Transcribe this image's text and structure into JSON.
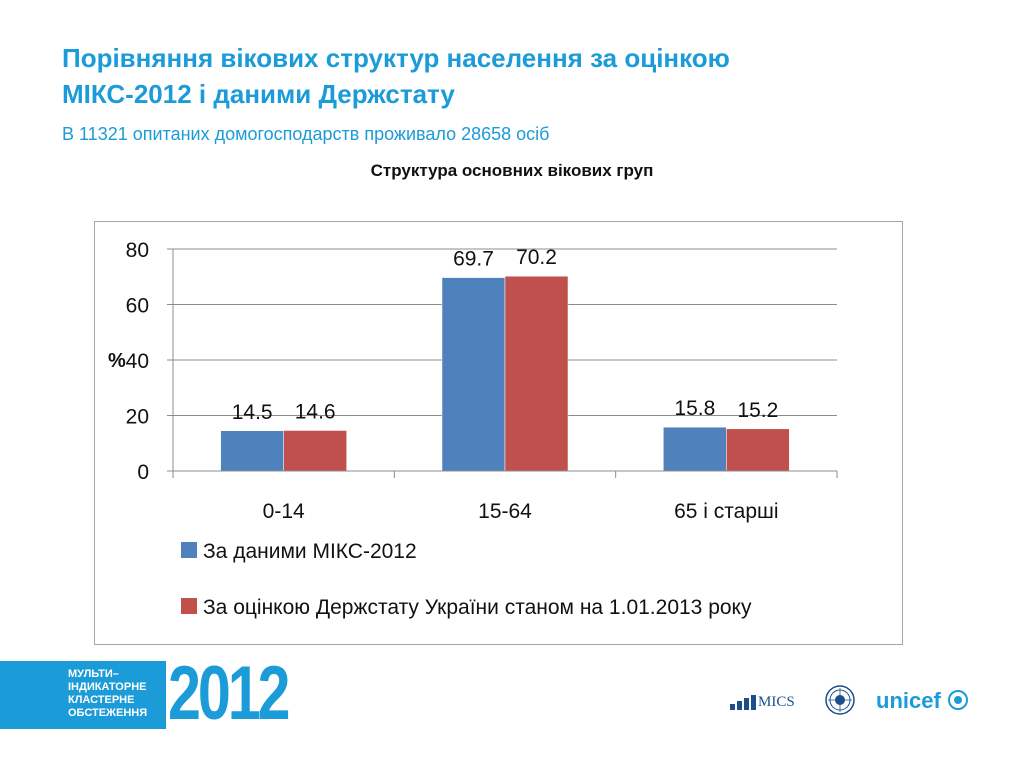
{
  "header": {
    "title_line1": "Порівняння вікових структур населення за оцінкою",
    "title_line2": "МІКС-2012 і даними Держстату",
    "subtitle": "В 11321 опитаних домогосподарств проживало 28658 осіб"
  },
  "chart_data": {
    "type": "bar",
    "title": "Структура основних вікових груп",
    "xlabel": "",
    "ylabel": "%",
    "ylim": [
      0,
      80
    ],
    "yticks": [
      0,
      20,
      40,
      60,
      80
    ],
    "grid": true,
    "legend_position": "bottom",
    "categories": [
      "0-14",
      "15-64",
      "65  і старші"
    ],
    "series": [
      {
        "name": "За даними МІКС-2012",
        "color": "#4f81bd",
        "values": [
          14.5,
          69.7,
          15.8
        ]
      },
      {
        "name": "За оцінкою Держстату України станом на 1.01.2013  року",
        "color": "#c0504d",
        "values": [
          14.6,
          70.2,
          15.2
        ]
      }
    ]
  },
  "footer": {
    "banner_lines": [
      "МУЛЬТИ–",
      "ІНДИКАТОРНЕ",
      "КЛАСТЕРНЕ",
      "ОБСТЕЖЕННЯ"
    ],
    "banner_year": "2012",
    "mics_logo": "MICS",
    "seal_icon": "ukrstat-seal-icon",
    "unicef_logo": "unicef"
  }
}
